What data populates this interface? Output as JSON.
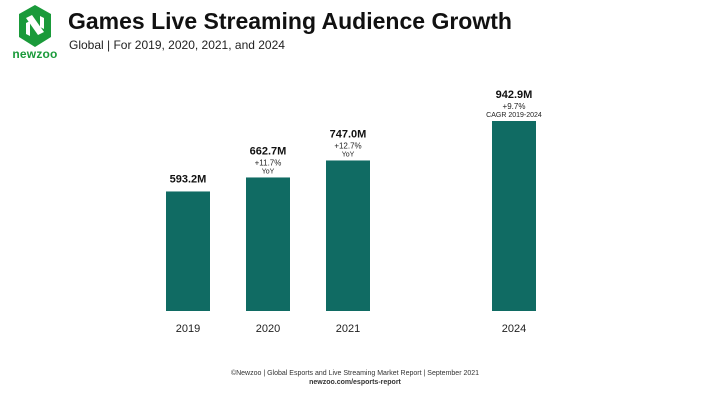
{
  "brand": {
    "name": "newzoo",
    "icon": "newzoo-logo-icon",
    "color": "#1a9a3a"
  },
  "header": {
    "title": "Games Live Streaming Audience Growth",
    "subtitle": "Global | For 2019, 2020, 2021, and 2024"
  },
  "chart_data": {
    "type": "bar",
    "title": "Games Live Streaming Audience Growth",
    "subtitle": "Global | For 2019, 2020, 2021, and 2024",
    "xlabel": "",
    "ylabel": "",
    "unit": "M",
    "grid": false,
    "bar_color": "#106b63",
    "ylim": [
      0,
      1000
    ],
    "categories": [
      "2019",
      "2020",
      "2021",
      "2024"
    ],
    "values": [
      593.2,
      662.7,
      747.0,
      942.9
    ],
    "data_labels": [
      "593.2M",
      "662.7M",
      "747.0M",
      "942.9M"
    ],
    "change_labels": [
      "",
      "+11.7%",
      "+12.7%",
      "+9.7%"
    ],
    "period_labels": [
      "",
      "YoY",
      "YoY",
      "CAGR 2019-2024"
    ]
  },
  "footer": {
    "source": "©Newzoo | Global Esports and Live Streaming Market Report | September 2021",
    "url": "newzoo.com/esports-report"
  }
}
